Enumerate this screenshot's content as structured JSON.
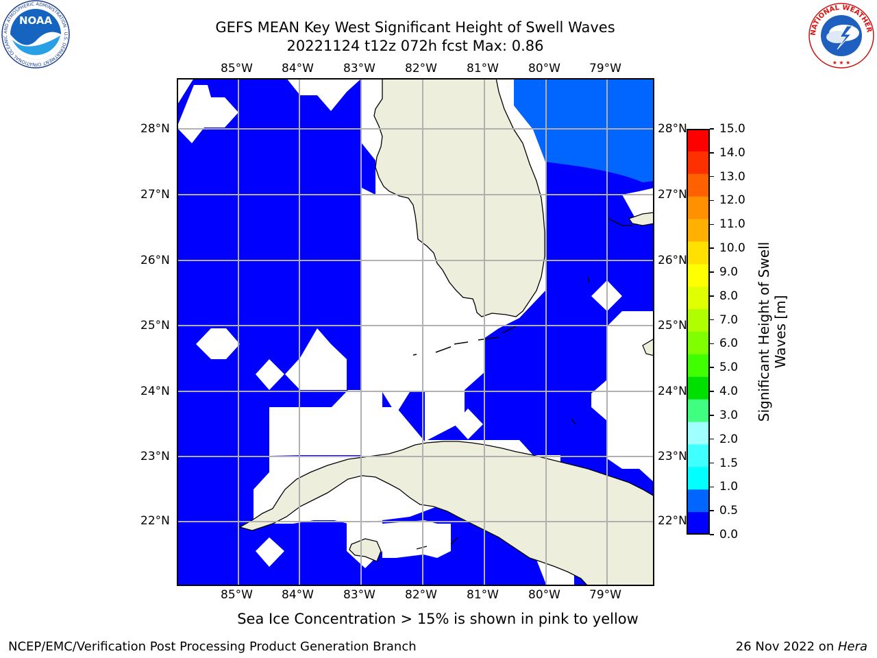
{
  "title": {
    "line1": "GEFS MEAN Key West Significant Height of Swell Waves",
    "line2": "20221124 t12z 072h fcst   Max: 0.86"
  },
  "map": {
    "lon_ticks": [
      "85°W",
      "84°W",
      "83°W",
      "82°W",
      "81°W",
      "80°W",
      "79°W"
    ],
    "lat_ticks": [
      "28°N",
      "27°N",
      "26°N",
      "25°N",
      "24°N",
      "23°N",
      "22°N"
    ],
    "colors": {
      "ocean_band_0": "#0000ff",
      "ocean_band_1": "#0066ff",
      "land": "#eeeedd",
      "grid": "#b0b0b0",
      "masked": "#ffffff"
    }
  },
  "colorbar": {
    "label": "Significant Height of Swell Waves [m]",
    "label_line1": "Significant Height of Swell",
    "label_line2": "Waves [m]",
    "ticks": [
      "15.0",
      "14.0",
      "13.0",
      "12.0",
      "11.0",
      "10.0",
      "9.0",
      "8.0",
      "7.0",
      "6.0",
      "5.0",
      "4.0",
      "3.0",
      "2.0",
      "1.5",
      "1.0",
      "0.5",
      "0.0"
    ],
    "colors": [
      "#ff0000",
      "#ff3000",
      "#ff6000",
      "#ff9000",
      "#ffb000",
      "#ffe000",
      "#ffff00",
      "#e0ff00",
      "#b0ff00",
      "#80ff00",
      "#40ff00",
      "#00e000",
      "#40ff80",
      "#a0ffff",
      "#40ffff",
      "#00ffff",
      "#0066ff",
      "#0000ff"
    ]
  },
  "caption": "Sea Ice Concentration > 15% is shown in pink to yellow",
  "footer": {
    "left": "NCEP/EMC/Verification Post Processing Product Generation Branch",
    "right_date": "26 Nov 2022 on ",
    "right_host": "Hera"
  },
  "logos": {
    "noaa": {
      "text": "NOAA",
      "ring_text": "NATIONAL OCEANIC AND ATMOSPHERIC ADMINISTRATION · U.S. DEPARTMENT OF COMMERCE"
    },
    "nws": {
      "ring_text": "NATIONAL WEATHER SERVICE"
    }
  }
}
